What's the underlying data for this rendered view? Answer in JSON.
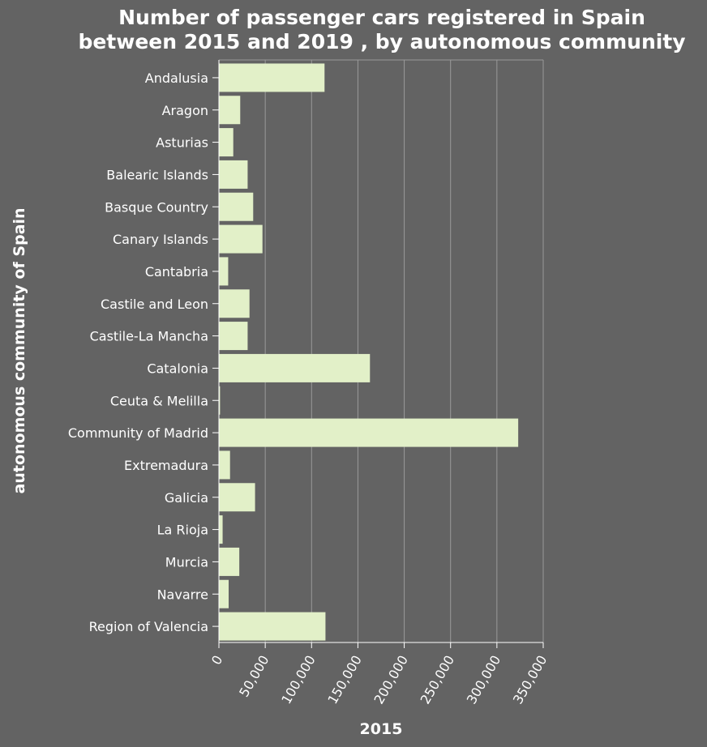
{
  "chart_data": {
    "type": "bar",
    "orientation": "horizontal",
    "title": [
      "Number of passenger cars registered in Spain",
      "between 2015 and 2019 , by autonomous community"
    ],
    "xlabel": "2015",
    "ylabel": "autonomous community of Spain",
    "categories": [
      "Andalusia",
      "Aragon",
      "Asturias",
      "Balearic Islands",
      "Basque Country",
      "Canary Islands",
      "Cantabria",
      "Castile and Leon",
      "Castile-La Mancha",
      "Catalonia",
      "Ceuta & Melilla",
      "Community of Madrid",
      "Extremadura",
      "Galicia",
      "La Rioja",
      "Murcia",
      "Navarre",
      "Region of Valencia"
    ],
    "values": [
      114000,
      23000,
      15500,
      31000,
      37000,
      47000,
      10000,
      33000,
      31000,
      163000,
      1200,
      323000,
      12000,
      39000,
      4000,
      22000,
      10500,
      115000
    ],
    "xlim": [
      0,
      350000
    ],
    "xticks": [
      "0",
      "50,000",
      "100,000",
      "150,000",
      "200,000",
      "250,000",
      "300,000",
      "350,000"
    ],
    "xtick_values": [
      0,
      50000,
      100000,
      150000,
      200000,
      250000,
      300000,
      350000
    ],
    "grid": true,
    "colors": {
      "background": "#636363",
      "bar": "#e2f0c8",
      "grid": "#9a9a9a",
      "text": "#ffffff"
    }
  }
}
